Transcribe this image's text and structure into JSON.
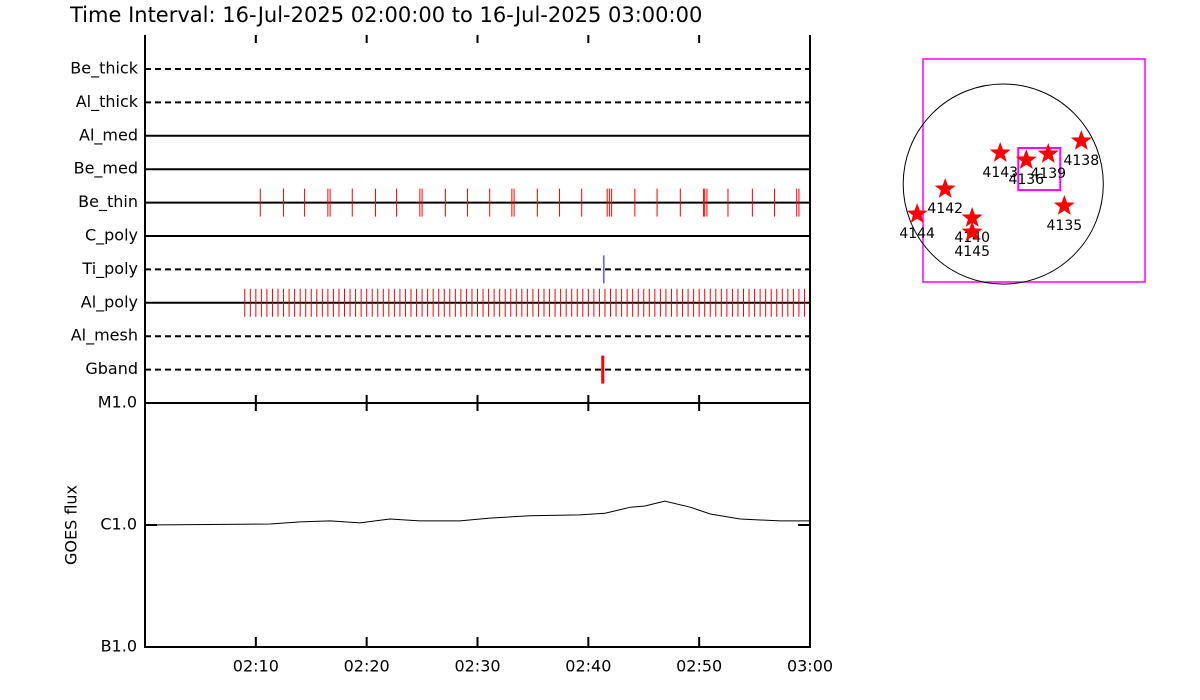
{
  "chart_data": [
    {
      "type": "event",
      "title": "Time Interval: 16-Jul-2025 02:00:00 to 16-Jul-2025 03:00:00",
      "xlim": [
        0,
        60
      ],
      "channels": [
        {
          "name": "Be_thick",
          "line": "dashed"
        },
        {
          "name": "Al_thick",
          "line": "dashed"
        },
        {
          "name": "Al_med",
          "line": "solid"
        },
        {
          "name": "Be_med",
          "line": "solid"
        },
        {
          "name": "Be_thin",
          "line": "solid",
          "color": "#ff0000",
          "events": [
            10.4,
            12.5,
            14.4,
            16.5,
            16.7,
            18.7,
            20.8,
            22.7,
            24.8,
            25.0,
            27.1,
            29.1,
            31.1,
            33.1,
            33.3,
            35.4,
            37.4,
            39.4,
            41.7,
            41.9,
            42.1,
            44.2,
            46.2,
            48.3,
            50.4,
            50.5,
            50.7,
            52.6,
            54.8,
            56.8,
            58.8,
            59.0
          ]
        },
        {
          "name": "C_poly",
          "line": "solid"
        },
        {
          "name": "Ti_poly",
          "line": "dashed",
          "color": "#0000ff",
          "events": [
            41.4
          ]
        },
        {
          "name": "Al_poly",
          "line": "solid",
          "color": "#ff0000",
          "events": [
            9.0,
            9.5,
            10.0,
            10.5,
            11.0,
            11.5,
            12.0,
            12.5,
            13.0,
            13.5,
            14.0,
            14.5,
            15.0,
            15.5,
            16.0,
            16.5,
            17.0,
            17.5,
            18.0,
            18.5,
            19.0,
            19.5,
            20.0,
            20.5,
            21.0,
            21.5,
            22.0,
            22.5,
            23.0,
            23.5,
            24.0,
            24.5,
            25.0,
            25.5,
            26.0,
            26.5,
            27.0,
            27.5,
            28.0,
            28.5,
            29.0,
            29.5,
            30.0,
            30.5,
            31.0,
            31.5,
            32.0,
            32.5,
            33.0,
            33.5,
            34.0,
            34.5,
            35.0,
            35.5,
            36.0,
            36.5,
            37.0,
            37.5,
            38.0,
            38.5,
            39.0,
            39.5,
            40.0,
            40.5,
            41.0,
            41.5,
            42.0,
            42.5,
            43.0,
            43.5,
            44.0,
            44.5,
            45.0,
            45.5,
            46.0,
            46.5,
            47.0,
            47.5,
            48.0,
            48.5,
            49.0,
            49.5,
            50.0,
            50.5,
            51.0,
            51.5,
            52.0,
            52.5,
            53.0,
            53.5,
            54.0,
            54.5,
            55.0,
            55.5,
            56.0,
            56.5,
            57.0,
            57.5,
            58.0,
            58.5,
            59.0,
            59.5
          ]
        },
        {
          "name": "Al_mesh",
          "line": "dashed"
        },
        {
          "name": "Gband",
          "line": "dashed",
          "color": "#ff0000",
          "events": [
            41.3
          ]
        }
      ]
    },
    {
      "type": "line",
      "ylabel": "GOES flux",
      "ylog": true,
      "ylim": [
        1e-07,
        1e-05
      ],
      "yticks": [
        {
          "value": 1e-07,
          "label": "B1.0"
        },
        {
          "value": 1e-06,
          "label": "C1.0"
        },
        {
          "value": 1e-05,
          "label": "M1.0"
        }
      ],
      "xlim": [
        0,
        60
      ],
      "xticks": [
        {
          "value": 10,
          "label": "02:10"
        },
        {
          "value": 20,
          "label": "02:20"
        },
        {
          "value": 30,
          "label": "02:30"
        },
        {
          "value": 40,
          "label": "02:40"
        },
        {
          "value": 50,
          "label": "02:50"
        },
        {
          "value": 60,
          "label": "03:00"
        }
      ],
      "color": "#000000",
      "x": [
        0,
        11.3,
        14.0,
        16.7,
        19.4,
        22.1,
        24.8,
        28.4,
        31.1,
        34.7,
        39.2,
        41.5,
        43.8,
        45.1,
        46.9,
        49.2,
        51.0,
        53.7,
        57.3,
        60
      ],
      "values": [
        1e-06,
        1.02e-06,
        1.06e-06,
        1.08e-06,
        1.04e-06,
        1.12e-06,
        1.08e-06,
        1.08e-06,
        1.14e-06,
        1.19e-06,
        1.21e-06,
        1.25e-06,
        1.4e-06,
        1.43e-06,
        1.57e-06,
        1.4e-06,
        1.23e-06,
        1.12e-06,
        1.08e-06,
        1.08e-06
      ]
    },
    {
      "type": "map",
      "xlim": [
        -770,
        1360
      ],
      "ylim": [
        -940,
        1200
      ],
      "disk_radius": 960,
      "box_color": "#ff00ff",
      "color": "#ff0000",
      "fov": {
        "xlim": [
          144,
          547
        ],
        "ylim": [
          -58,
          346
        ]
      },
      "regions": [
        {
          "name": "4143",
          "x": -29,
          "y": 298
        },
        {
          "name": "4136",
          "x": 221,
          "y": 230
        },
        {
          "name": "4139",
          "x": 432,
          "y": 288
        },
        {
          "name": "4138",
          "x": 749,
          "y": 413
        },
        {
          "name": "4142",
          "x": -557,
          "y": -48
        },
        {
          "name": "4144",
          "x": -826,
          "y": -288
        },
        {
          "name": "4140",
          "x": -298,
          "y": -326
        },
        {
          "name": "4145",
          "x": -298,
          "y": -461
        },
        {
          "name": "4135",
          "x": 586,
          "y": -211
        }
      ]
    }
  ]
}
